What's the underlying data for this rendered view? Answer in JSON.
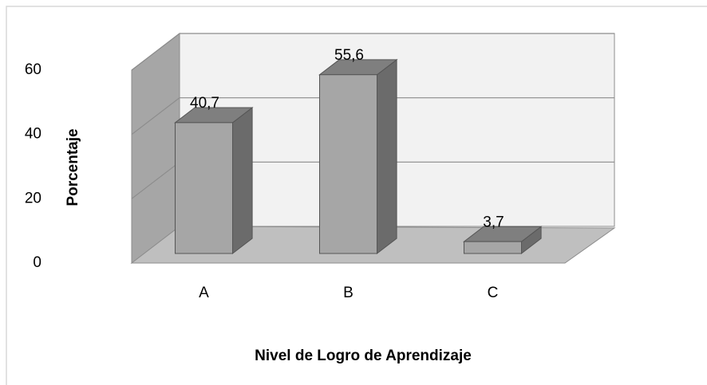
{
  "chart_data": {
    "type": "bar3d",
    "x_label": "Nivel de Logro de Aprendizaje",
    "y_label": "Porcentaje",
    "categories": [
      "A",
      "B",
      "C"
    ],
    "values": [
      40.7,
      55.6,
      3.7
    ],
    "value_labels": [
      "40,7",
      "55,6",
      "3,7"
    ],
    "color": "#a6a6a6",
    "ylim": [
      0,
      60
    ],
    "yticks": [
      0,
      20,
      40,
      60
    ],
    "grid": true
  }
}
